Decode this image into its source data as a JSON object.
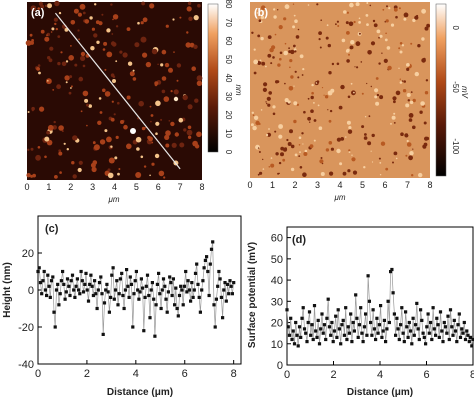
{
  "chart_data": [
    {
      "type": "heatmap",
      "panel_label": "(a)",
      "xlabel": "μm",
      "xlim": [
        0,
        8
      ],
      "xticks": [
        "0",
        "1",
        "2",
        "3",
        "4",
        "5",
        "6",
        "7",
        "8"
      ],
      "colorbar": {
        "unit": "nm",
        "range": [
          0,
          80
        ],
        "ticks": [
          "0",
          "10",
          "20",
          "30",
          "40",
          "50",
          "60",
          "70",
          "80"
        ],
        "colors": [
          "#000000",
          "#5a1a08",
          "#b04a18",
          "#f0a060",
          "#ffffff"
        ]
      },
      "profile_line": {
        "from": [
          1.3,
          7.5
        ],
        "to": [
          7.0,
          0.5
        ]
      }
    },
    {
      "type": "heatmap",
      "panel_label": "(b)",
      "xlabel": "μm",
      "xlim": [
        0,
        8
      ],
      "xticks": [
        "0",
        "1",
        "2",
        "3",
        "4",
        "5",
        "6",
        "7",
        "8"
      ],
      "colorbar": {
        "unit": "mV",
        "range": [
          -125,
          20
        ],
        "ticks": [
          "-100",
          "-50",
          "0"
        ],
        "tick_values": [
          -100,
          -50,
          0
        ],
        "colors": [
          "#000000",
          "#5a1a08",
          "#b04a18",
          "#f0a060",
          "#ffffff"
        ]
      }
    },
    {
      "type": "line",
      "panel_label": "(c)",
      "xlabel": "Distance (μm)",
      "ylabel": "Height (nm)",
      "xlim": [
        0,
        8.3
      ],
      "ylim": [
        -40,
        40
      ],
      "xticks": [
        0,
        2,
        4,
        6,
        8
      ],
      "yticks": [
        -40,
        -20,
        0,
        20
      ],
      "y": [
        10,
        12,
        4,
        -2,
        5,
        10,
        0,
        -3,
        8,
        2,
        -4,
        5,
        7,
        -12,
        -20,
        0,
        3,
        -8,
        -2,
        5,
        10,
        3,
        -5,
        -1,
        6,
        2,
        -3,
        5,
        8,
        0,
        -4,
        2,
        6,
        0,
        -2,
        10,
        5,
        -1,
        3,
        9,
        0,
        -6,
        3,
        8,
        2,
        -3,
        5,
        -2,
        -10,
        0,
        4,
        7,
        -2,
        -24,
        -7,
        0,
        3,
        -1,
        -12,
        -4,
        8,
        12,
        -5,
        0,
        5,
        -8,
        -2,
        6,
        9,
        -3,
        -10,
        0,
        11,
        2,
        -4,
        7,
        3,
        -20,
        -2,
        5,
        10,
        0,
        -5,
        -1,
        6,
        1,
        -22,
        -4,
        2,
        8,
        -3,
        -15,
        0,
        4,
        -5,
        -25,
        -8,
        3,
        9,
        -2,
        -10,
        0,
        6,
        2,
        -5,
        -12,
        -1,
        7,
        4,
        -3,
        6,
        -8,
        1,
        -10,
        -14,
        -3,
        2,
        0,
        -8,
        2,
        10,
        -1,
        5,
        0,
        -6,
        4,
        -4,
        0,
        9,
        14,
        3,
        -4,
        -12,
        0,
        5,
        12,
        16,
        18,
        10,
        -3,
        14,
        22,
        26,
        -8,
        -20,
        -5,
        2,
        10,
        6,
        -4,
        -15,
        0,
        4,
        -6,
        3,
        -2,
        5,
        2,
        -2,
        4
      ]
    },
    {
      "type": "line",
      "panel_label": "(d)",
      "xlabel": "Distance (μm)",
      "ylabel": "Surface potential (mV)",
      "xlim": [
        0,
        8
      ],
      "ylim": [
        0,
        65
      ],
      "xticks": [
        0,
        2,
        4,
        6,
        8
      ],
      "yticks": [
        0,
        10,
        20,
        30,
        40,
        50,
        60
      ],
      "y": [
        26,
        18,
        14,
        22,
        12,
        16,
        10,
        20,
        14,
        9,
        18,
        13,
        22,
        27,
        17,
        15,
        11,
        20,
        25,
        14,
        19,
        12,
        28,
        16,
        13,
        21,
        10,
        17,
        24,
        15,
        19,
        12,
        22,
        31,
        18,
        14,
        20,
        11,
        16,
        23,
        13,
        26,
        17,
        10,
        19,
        21,
        14,
        27,
        12,
        18,
        15,
        24,
        11,
        20,
        16,
        33,
        22,
        13,
        19,
        27,
        15,
        11,
        18,
        24,
        14,
        42,
        30,
        20,
        14,
        26,
        17,
        12,
        22,
        15,
        19,
        28,
        13,
        16,
        21,
        11,
        17,
        30,
        20,
        44,
        45,
        34,
        24,
        14,
        22,
        17,
        12,
        19,
        27,
        15,
        11,
        25,
        18,
        13,
        20,
        16,
        10,
        22,
        14,
        19,
        29,
        17,
        12,
        26,
        21,
        15,
        13,
        10,
        18,
        24,
        15,
        20,
        12,
        27,
        17,
        14,
        22,
        19,
        13,
        25,
        16,
        11,
        20,
        18,
        15,
        23,
        12,
        26,
        18,
        14,
        21,
        16,
        11,
        19,
        24,
        13,
        17,
        15,
        20,
        12,
        16,
        14,
        11,
        13,
        9,
        12
      ]
    }
  ]
}
